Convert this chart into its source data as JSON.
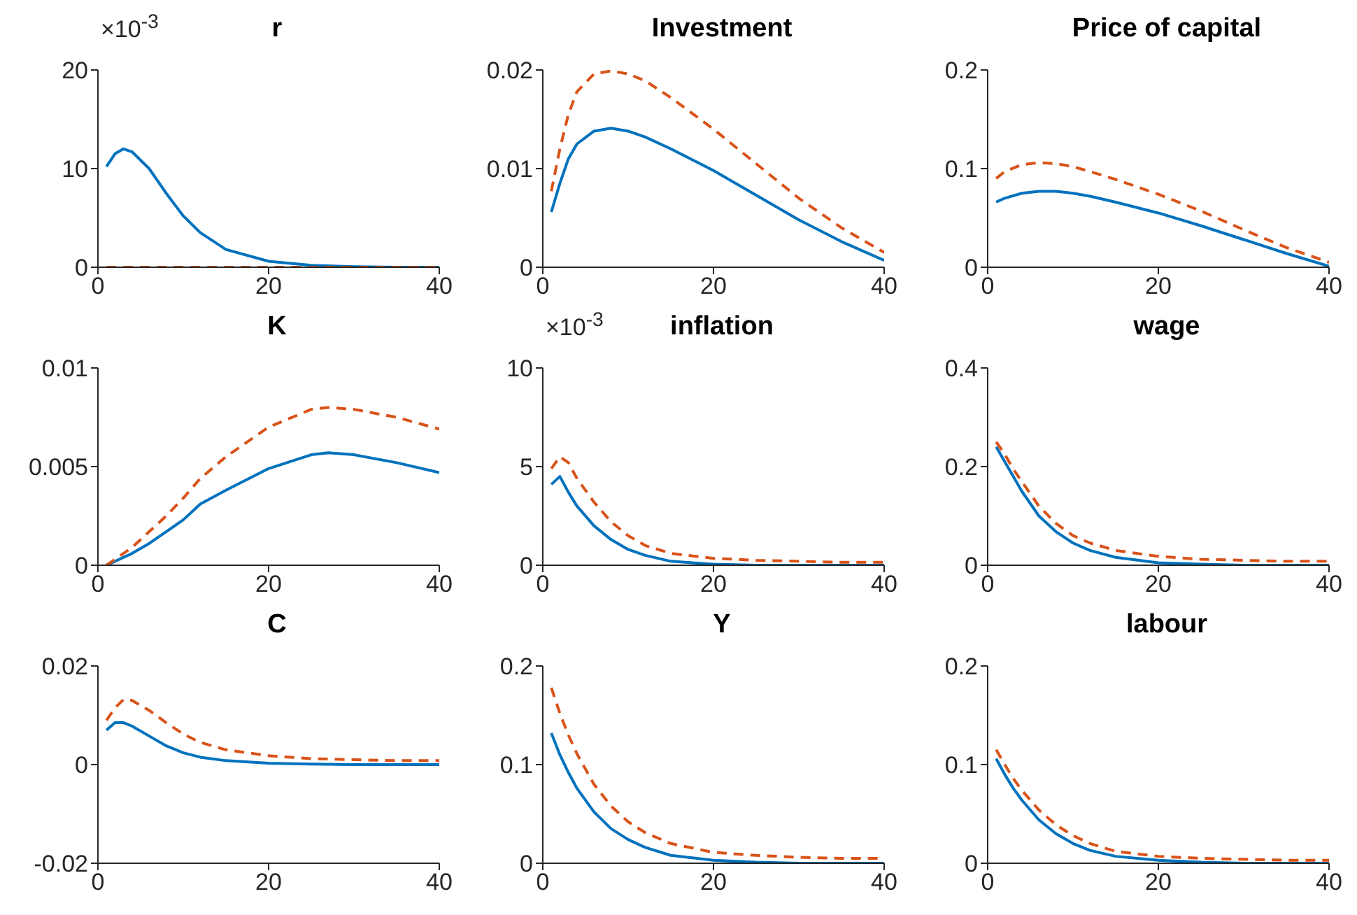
{
  "chart_data": [
    {
      "type": "line",
      "title": "r",
      "annotations": [
        "×10$^{-3}$"
      ],
      "x": [
        1,
        2,
        3,
        4,
        6,
        8,
        10,
        12,
        15,
        20,
        25,
        30,
        35,
        40
      ],
      "xlim": [
        0,
        40
      ],
      "xticks": [
        0,
        20,
        40
      ],
      "ylim": [
        0,
        20
      ],
      "yticks": [
        0,
        10,
        20
      ],
      "series": [
        {
          "color": "#0072bd",
          "line_style": "solid",
          "values": [
            10.2,
            11.5,
            12,
            11.7,
            10,
            7.5,
            5.2,
            3.5,
            1.8,
            0.6,
            0.2,
            0.05,
            0,
            0
          ]
        },
        {
          "color": "#d95319",
          "line_style": "dashed",
          "values": [
            0,
            0,
            0,
            0,
            0,
            0,
            0,
            0,
            0,
            0,
            0,
            0,
            0,
            0
          ]
        }
      ]
    },
    {
      "type": "line",
      "title": "Investment",
      "x": [
        1,
        2,
        3,
        4,
        6,
        8,
        10,
        12,
        15,
        20,
        25,
        30,
        35,
        40
      ],
      "xlim": [
        0,
        40
      ],
      "xticks": [
        0,
        20,
        40
      ],
      "ylim": [
        0,
        0.02
      ],
      "yticks": [
        0,
        0.01,
        0.02
      ],
      "series": [
        {
          "color": "#0072bd",
          "line_style": "solid",
          "values": [
            0.0056,
            0.0085,
            0.011,
            0.0125,
            0.0138,
            0.0141,
            0.0138,
            0.0132,
            0.012,
            0.0098,
            0.0073,
            0.0048,
            0.0026,
            0.0007
          ]
        },
        {
          "color": "#d95319",
          "line_style": "dashed",
          "values": [
            0.0077,
            0.012,
            0.0155,
            0.0178,
            0.0196,
            0.0199,
            0.0196,
            0.0189,
            0.0172,
            0.014,
            0.0105,
            0.007,
            0.004,
            0.0015
          ]
        }
      ]
    },
    {
      "type": "line",
      "title": "Price of capital",
      "x": [
        1,
        2,
        4,
        6,
        8,
        10,
        12,
        15,
        20,
        25,
        30,
        35,
        40
      ],
      "xlim": [
        0,
        40
      ],
      "xticks": [
        0,
        20,
        40
      ],
      "ylim": [
        0,
        0.2
      ],
      "yticks": [
        0,
        0.1,
        0.2
      ],
      "series": [
        {
          "color": "#0072bd",
          "line_style": "solid",
          "values": [
            0.066,
            0.07,
            0.075,
            0.077,
            0.077,
            0.075,
            0.072,
            0.066,
            0.055,
            0.042,
            0.028,
            0.014,
            0.001
          ]
        },
        {
          "color": "#d95319",
          "line_style": "dashed",
          "values": [
            0.09,
            0.097,
            0.104,
            0.106,
            0.105,
            0.102,
            0.097,
            0.089,
            0.074,
            0.057,
            0.038,
            0.02,
            0.005
          ]
        }
      ]
    },
    {
      "type": "line",
      "title": "K",
      "x": [
        1,
        4,
        6,
        8,
        10,
        12,
        15,
        20,
        25,
        27,
        30,
        35,
        40
      ],
      "xlim": [
        0,
        40
      ],
      "xticks": [
        0,
        20,
        40
      ],
      "ylim": [
        0,
        0.01
      ],
      "yticks": [
        0,
        0.005,
        0.01
      ],
      "series": [
        {
          "color": "#0072bd",
          "line_style": "solid",
          "values": [
            0,
            0.0006,
            0.0011,
            0.0017,
            0.0023,
            0.0031,
            0.0038,
            0.0049,
            0.0056,
            0.0057,
            0.0056,
            0.0052,
            0.0047
          ]
        },
        {
          "color": "#d95319",
          "line_style": "dashed",
          "values": [
            0,
            0.0009,
            0.0017,
            0.0025,
            0.0034,
            0.0044,
            0.0055,
            0.007,
            0.0079,
            0.008,
            0.0079,
            0.0075,
            0.0069
          ]
        }
      ]
    },
    {
      "type": "line",
      "title": "inflation",
      "annotations": [
        "×10$^{-3}$"
      ],
      "x": [
        1,
        2,
        3,
        4,
        6,
        8,
        10,
        12,
        15,
        20,
        25,
        30,
        35,
        40
      ],
      "xlim": [
        0,
        40
      ],
      "xticks": [
        0,
        20,
        40
      ],
      "ylim": [
        0,
        10
      ],
      "yticks": [
        0,
        5,
        10
      ],
      "series": [
        {
          "color": "#0072bd",
          "line_style": "solid",
          "values": [
            4.1,
            4.5,
            3.7,
            3,
            2,
            1.3,
            0.8,
            0.5,
            0.2,
            0.05,
            0,
            0,
            0,
            0
          ]
        },
        {
          "color": "#d95319",
          "line_style": "dashed",
          "values": [
            4.9,
            5.5,
            5.2,
            4.4,
            3.2,
            2.2,
            1.5,
            1,
            0.6,
            0.35,
            0.25,
            0.2,
            0.15,
            0.15
          ]
        }
      ]
    },
    {
      "type": "line",
      "title": "wage",
      "x": [
        1,
        2,
        3,
        4,
        6,
        8,
        10,
        12,
        15,
        20,
        25,
        30,
        35,
        40
      ],
      "xlim": [
        0,
        40
      ],
      "xticks": [
        0,
        20,
        40
      ],
      "ylim": [
        0,
        0.4
      ],
      "yticks": [
        0,
        0.2,
        0.4
      ],
      "series": [
        {
          "color": "#0072bd",
          "line_style": "solid",
          "values": [
            0.24,
            0.21,
            0.18,
            0.15,
            0.1,
            0.068,
            0.045,
            0.03,
            0.016,
            0.005,
            0.002,
            0,
            0,
            0
          ]
        },
        {
          "color": "#d95319",
          "line_style": "dashed",
          "values": [
            0.25,
            0.225,
            0.195,
            0.17,
            0.12,
            0.085,
            0.06,
            0.045,
            0.03,
            0.018,
            0.012,
            0.01,
            0.008,
            0.008
          ]
        }
      ]
    },
    {
      "type": "line",
      "title": "C",
      "x": [
        1,
        2,
        3,
        4,
        6,
        8,
        10,
        12,
        15,
        20,
        25,
        30,
        35,
        40
      ],
      "xlim": [
        0,
        40
      ],
      "xticks": [
        0,
        20,
        40
      ],
      "ylim": [
        -0.02,
        0.02
      ],
      "yticks": [
        -0.02,
        0,
        0.02
      ],
      "series": [
        {
          "color": "#0072bd",
          "line_style": "solid",
          "values": [
            0.007,
            0.0085,
            0.0085,
            0.0078,
            0.0058,
            0.0038,
            0.0024,
            0.0015,
            0.0008,
            0.0003,
            0.0001,
            0,
            0,
            0
          ]
        },
        {
          "color": "#d95319",
          "line_style": "dashed",
          "values": [
            0.009,
            0.0115,
            0.0132,
            0.013,
            0.011,
            0.0085,
            0.0062,
            0.0045,
            0.003,
            0.0018,
            0.0012,
            0.001,
            0.0008,
            0.0008
          ]
        }
      ]
    },
    {
      "type": "line",
      "title": "Y",
      "x": [
        1,
        2,
        3,
        4,
        6,
        8,
        10,
        12,
        15,
        20,
        25,
        30,
        35,
        40
      ],
      "xlim": [
        0,
        40
      ],
      "xticks": [
        0,
        20,
        40
      ],
      "ylim": [
        0,
        0.2
      ],
      "yticks": [
        0,
        0.1,
        0.2
      ],
      "series": [
        {
          "color": "#0072bd",
          "line_style": "solid",
          "values": [
            0.132,
            0.11,
            0.092,
            0.076,
            0.052,
            0.035,
            0.024,
            0.016,
            0.008,
            0.003,
            0.001,
            0,
            0,
            0
          ]
        },
        {
          "color": "#d95319",
          "line_style": "dashed",
          "values": [
            0.178,
            0.152,
            0.13,
            0.111,
            0.08,
            0.058,
            0.042,
            0.031,
            0.02,
            0.011,
            0.008,
            0.006,
            0.005,
            0.005
          ]
        }
      ]
    },
    {
      "type": "line",
      "title": "labour",
      "x": [
        1,
        2,
        3,
        4,
        6,
        8,
        10,
        12,
        15,
        20,
        25,
        30,
        35,
        40
      ],
      "xlim": [
        0,
        40
      ],
      "xticks": [
        0,
        20,
        40
      ],
      "ylim": [
        0,
        0.2
      ],
      "yticks": [
        0,
        0.1,
        0.2
      ],
      "series": [
        {
          "color": "#0072bd",
          "line_style": "solid",
          "values": [
            0.106,
            0.09,
            0.076,
            0.064,
            0.044,
            0.03,
            0.02,
            0.013,
            0.007,
            0.003,
            0.001,
            0,
            0,
            0
          ]
        },
        {
          "color": "#d95319",
          "line_style": "dashed",
          "values": [
            0.115,
            0.1,
            0.086,
            0.074,
            0.054,
            0.039,
            0.028,
            0.02,
            0.012,
            0.007,
            0.005,
            0.004,
            0.003,
            0.003
          ]
        }
      ]
    }
  ]
}
